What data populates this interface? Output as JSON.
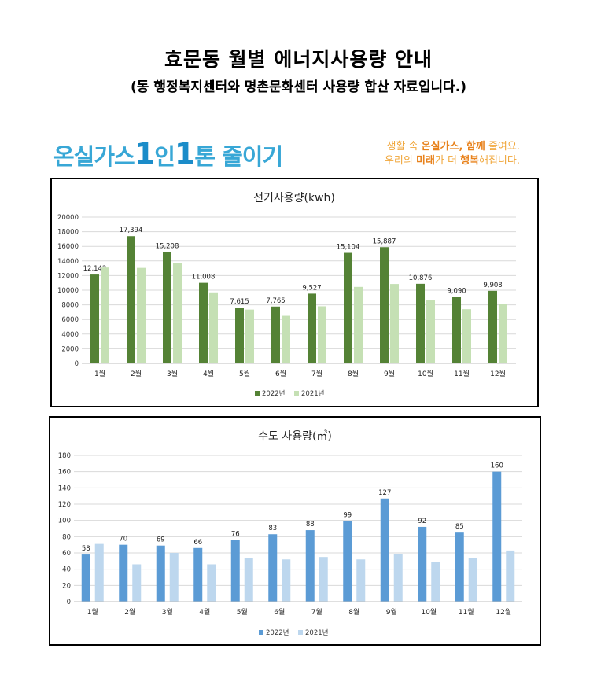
{
  "header": {
    "title": "효문동 월별 에너지사용량 안내",
    "subtitle": "(동 행정복지센터와 명촌문화센터 사용량 합산 자료입니다.)"
  },
  "banner": {
    "slogan_a": "온실가스",
    "slogan_b": "1",
    "slogan_c": "인",
    "slogan_d": "1",
    "slogan_e": "톤 줄이기",
    "tagline_line1_a": "생활 속 ",
    "tagline_line1_b": "온실가스, 함께",
    "tagline_line1_c": " 줄여요.",
    "tagline_line2_a": "우리의 ",
    "tagline_line2_b": "미래",
    "tagline_line2_c": "가 더 ",
    "tagline_line2_d": "행복",
    "tagline_line2_e": "해집니다."
  },
  "chart_data": [
    {
      "type": "bar",
      "title": "전기사용량(kwh)",
      "categories": [
        "1월",
        "2월",
        "3월",
        "4월",
        "5월",
        "6월",
        "7월",
        "8월",
        "9월",
        "10월",
        "11월",
        "12월"
      ],
      "series": [
        {
          "name": "2022년",
          "color": "#548235",
          "values": [
            12142,
            17394,
            15208,
            11008,
            7615,
            7765,
            9527,
            15104,
            15887,
            10876,
            9090,
            9908
          ],
          "labels": [
            "12,142",
            "17,394",
            "15,208",
            "11,008",
            "7,615",
            "7,765",
            "9,527",
            "15,104",
            "15,887",
            "10,876",
            "9,090",
            "9,908"
          ]
        },
        {
          "name": "2021년",
          "color": "#c5e0b4",
          "values": [
            13100,
            13050,
            13750,
            9700,
            7350,
            6500,
            7800,
            10450,
            10850,
            8600,
            7400,
            8100
          ]
        }
      ],
      "ylim": [
        0,
        20000
      ],
      "yticks": [
        0,
        2000,
        4000,
        6000,
        8000,
        10000,
        12000,
        14000,
        16000,
        18000,
        20000
      ],
      "grid": true,
      "legend": "bottom"
    },
    {
      "type": "bar",
      "title": "수도 사용량(㎥)",
      "categories": [
        "1월",
        "2월",
        "3월",
        "4월",
        "5월",
        "6월",
        "7월",
        "8월",
        "9월",
        "10월",
        "11월",
        "12월"
      ],
      "series": [
        {
          "name": "2022년",
          "color": "#5b9bd5",
          "values": [
            58,
            70,
            69,
            66,
            76,
            83,
            88,
            99,
            127,
            92,
            85,
            160
          ],
          "labels": [
            "58",
            "70",
            "69",
            "66",
            "76",
            "83",
            "88",
            "99",
            "127",
            "92",
            "85",
            "160"
          ]
        },
        {
          "name": "2021년",
          "color": "#bdd7ee",
          "values": [
            71,
            46,
            60,
            46,
            54,
            52,
            55,
            52,
            59,
            49,
            54,
            63
          ]
        }
      ],
      "ylim": [
        0,
        180
      ],
      "yticks": [
        0,
        20,
        40,
        60,
        80,
        100,
        120,
        140,
        160,
        180
      ],
      "grid": true,
      "legend": "bottom"
    }
  ]
}
